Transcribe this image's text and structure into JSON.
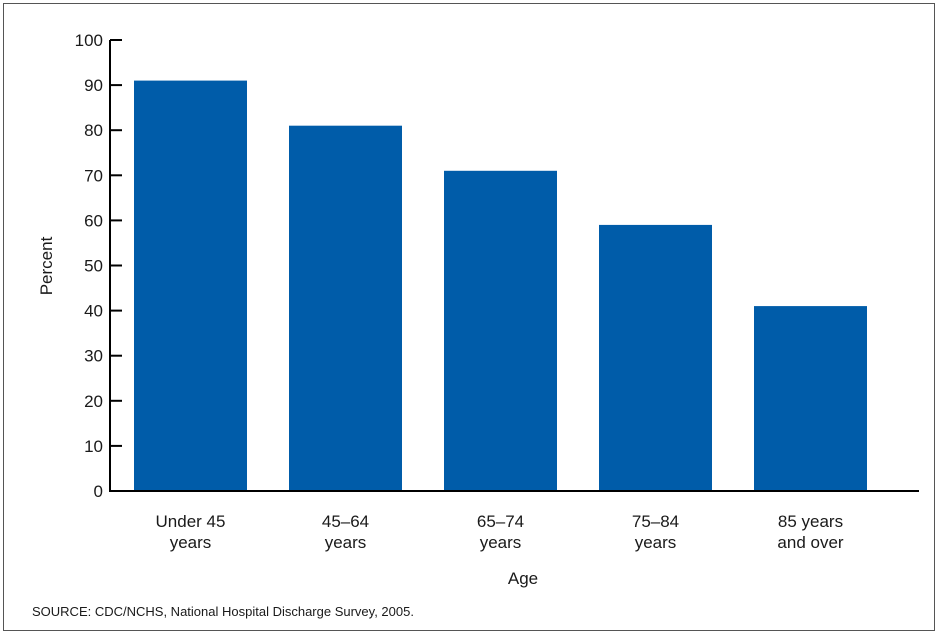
{
  "chart_data": {
    "type": "bar",
    "categories": [
      [
        "Under 45",
        "years"
      ],
      [
        "45–64",
        "years"
      ],
      [
        "65–74",
        "years"
      ],
      [
        "75–84",
        "years"
      ],
      [
        "85 years",
        "and over"
      ]
    ],
    "values": [
      91,
      81,
      71,
      59,
      41
    ],
    "ylim": [
      0,
      100
    ],
    "yticks": [
      0,
      10,
      20,
      30,
      40,
      50,
      60,
      70,
      80,
      90,
      100
    ],
    "xlabel": "Age",
    "ylabel": "Percent",
    "bar_color": "#005ca9",
    "grid": false,
    "legend": "none"
  },
  "source": "SOURCE:  CDC/NCHS, National Hospital Discharge Survey, 2005."
}
